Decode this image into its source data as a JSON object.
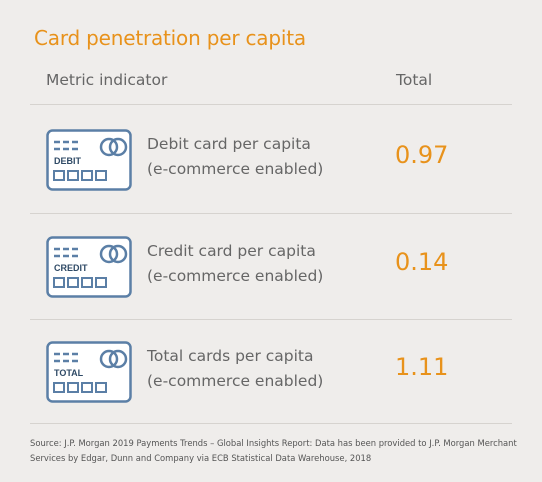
{
  "title": "Card penetration per capita",
  "header": {
    "metric": "Metric indicator",
    "total": "Total"
  },
  "rows": [
    {
      "card_label": "DEBIT",
      "line1": "Debit card per capita",
      "line2": "(e-commerce enabled)",
      "value": "0.97"
    },
    {
      "card_label": "CREDIT",
      "line1": "Credit card per capita",
      "line2": "(e-commerce enabled)",
      "value": "0.14"
    },
    {
      "card_label": "TOTAL",
      "line1": "Total cards per capita",
      "line2": "(e-commerce enabled)",
      "value": "1.11"
    }
  ],
  "source": "Source: J.P. Morgan 2019 Payments Trends – Global Insights Report: Data has been provided to J.P. Morgan Merchant Services by Edgar, Dunn and Company via ECB Statistical Data Warehouse, 2018",
  "colors": {
    "accent": "#e8921b",
    "icon": "#5b7fa6",
    "text": "#666666",
    "background": "#efedeb"
  }
}
